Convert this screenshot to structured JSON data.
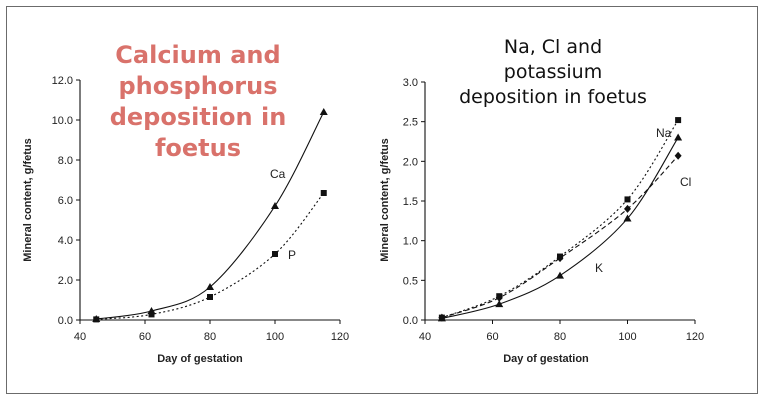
{
  "chart_data": [
    {
      "type": "line",
      "title": [
        "Calcium and",
        "phosphorus",
        "deposition in",
        "foetus"
      ],
      "xlabel": "Day of gestation",
      "ylabel": "Mineral content, g/fetus",
      "xlim": [
        40,
        120
      ],
      "ylim": [
        0,
        12
      ],
      "xticks": [
        "40",
        "60",
        "80",
        "100",
        "120"
      ],
      "yticks": [
        "0.0",
        "2.0",
        "4.0",
        "6.0",
        "8.0",
        "10.0",
        "12.0"
      ],
      "series": [
        {
          "name": "Ca",
          "marker": "triangle",
          "dash": "solid",
          "points": [
            [
              45,
              0.05
            ],
            [
              62,
              0.45
            ],
            [
              80,
              1.65
            ],
            [
              100,
              5.7
            ],
            [
              115,
              10.4
            ]
          ]
        },
        {
          "name": "P",
          "marker": "square",
          "dash": "dotted",
          "points": [
            [
              45,
              0.03
            ],
            [
              62,
              0.28
            ],
            [
              80,
              1.15
            ],
            [
              100,
              3.3
            ],
            [
              115,
              6.35
            ]
          ]
        }
      ]
    },
    {
      "type": "line",
      "title": [
        "Na, Cl and",
        "potassium",
        "deposition in foetus"
      ],
      "xlabel": "Day of gestation",
      "ylabel": "Mineral content, g/fetus",
      "xlim": [
        40,
        120
      ],
      "ylim": [
        0,
        3
      ],
      "xticks": [
        "40",
        "60",
        "80",
        "100",
        "120"
      ],
      "yticks": [
        "0.0",
        "0.5",
        "1.0",
        "1.5",
        "2.0",
        "2.5",
        "3.0"
      ],
      "series": [
        {
          "name": "Na",
          "marker": "square",
          "dash": "dotted",
          "points": [
            [
              45,
              0.03
            ],
            [
              62,
              0.3
            ],
            [
              80,
              0.8
            ],
            [
              100,
              1.52
            ],
            [
              115,
              2.52
            ]
          ]
        },
        {
          "name": "Cl",
          "marker": "diamond",
          "dash": "dashed",
          "points": [
            [
              45,
              0.03
            ],
            [
              62,
              0.28
            ],
            [
              80,
              0.78
            ],
            [
              100,
              1.4
            ],
            [
              115,
              2.07
            ]
          ]
        },
        {
          "name": "K",
          "marker": "triangle",
          "dash": "solid",
          "points": [
            [
              45,
              0.02
            ],
            [
              62,
              0.2
            ],
            [
              80,
              0.56
            ],
            [
              100,
              1.28
            ],
            [
              115,
              2.3
            ]
          ]
        }
      ]
    }
  ]
}
